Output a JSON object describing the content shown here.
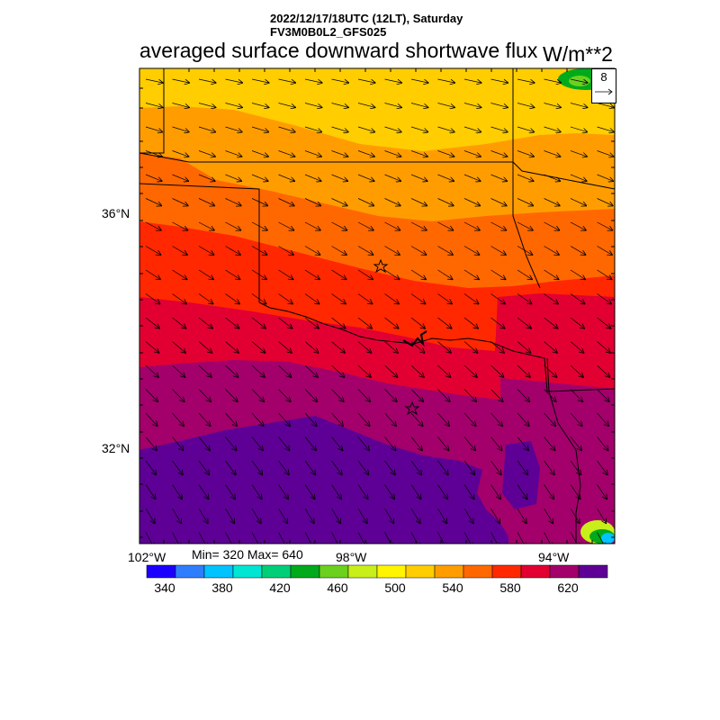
{
  "header": {
    "datetime": "2022/12/17/18UTC (12LT), Saturday",
    "model": "FV3M0B0L2_GFS025",
    "title": "averaged surface downward shortwave flux",
    "units": "W/m**2"
  },
  "stats": {
    "label": "Min= 320 Max= 640",
    "min": 320,
    "max": 640
  },
  "vector_reference": {
    "value": "8"
  },
  "axes": {
    "lat_labels": [
      "36°N",
      "32°N"
    ],
    "lon_labels": [
      "102°W",
      "98°W",
      "94°W"
    ]
  },
  "colorbar": {
    "colors": [
      "#1c00ff",
      "#2f7dff",
      "#00c3ff",
      "#00e6d2",
      "#00cf78",
      "#00aa1a",
      "#6bd11e",
      "#c8ef19",
      "#fff500",
      "#ffcd00",
      "#ff9d00",
      "#ff6800",
      "#ff2800",
      "#e20032",
      "#a3006b",
      "#5e0095"
    ],
    "labels": [
      "340",
      "380",
      "420",
      "460",
      "500",
      "540",
      "580",
      "620"
    ]
  },
  "map": {
    "field_bands_top_to_bottom": [
      "#ffcd00",
      "#ff9d00",
      "#ff6800",
      "#ff2800",
      "#e20032",
      "#a3006b",
      "#5e0095"
    ],
    "markers": [
      "star",
      "star"
    ],
    "wind_flow": "northwesterly"
  }
}
